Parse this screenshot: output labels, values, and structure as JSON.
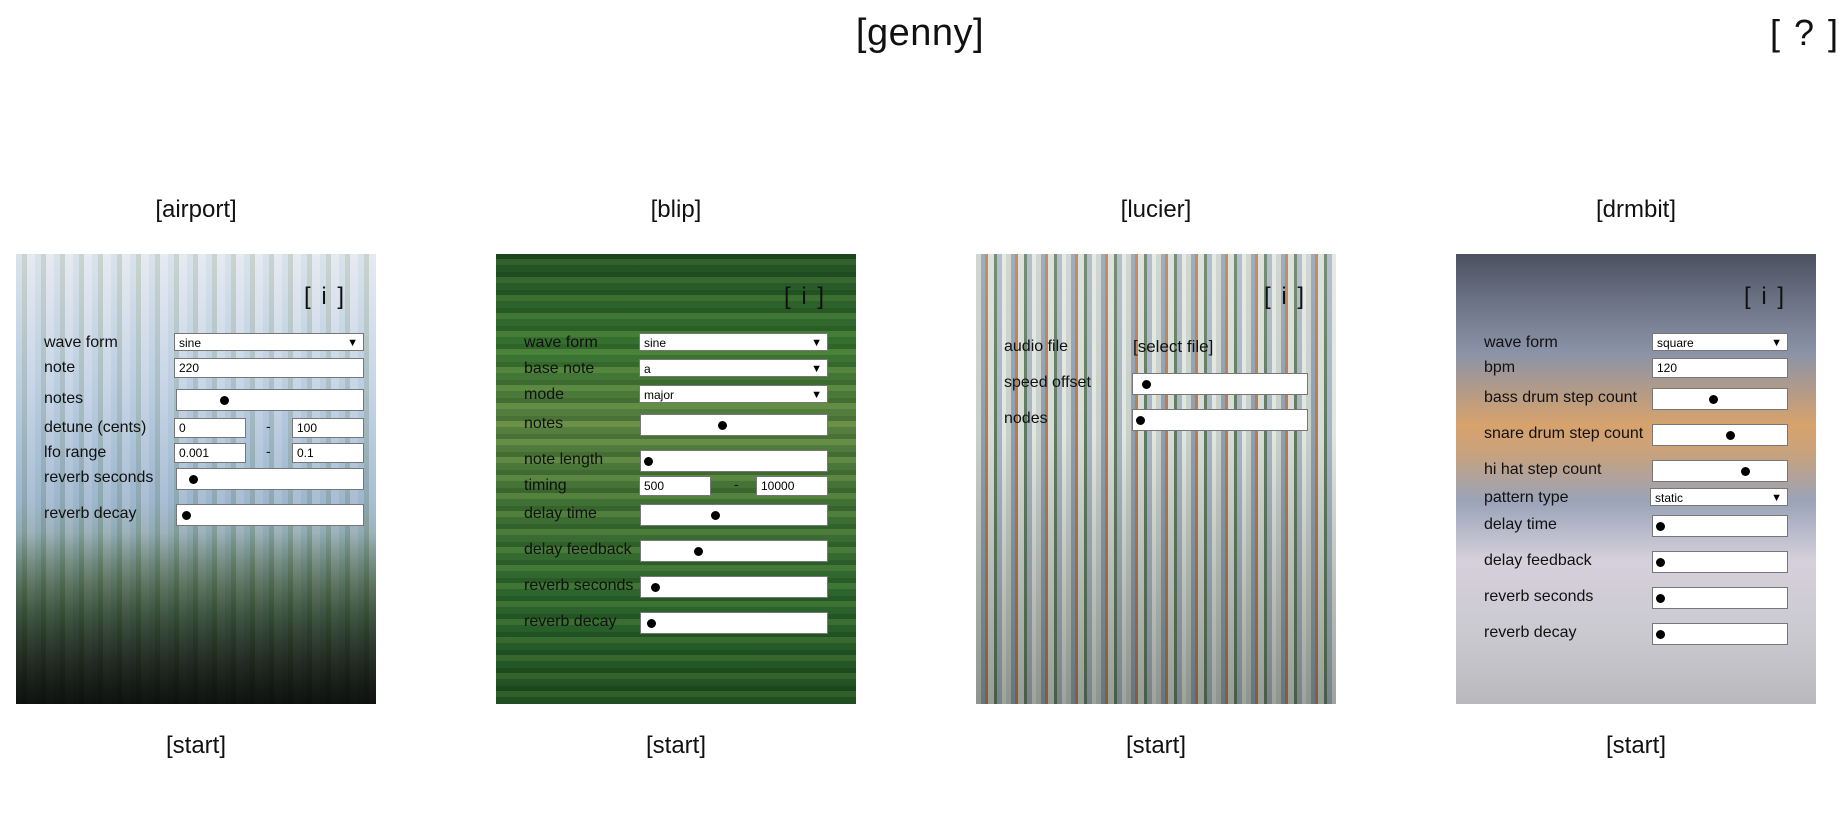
{
  "header": {
    "title": "[genny]",
    "help_label": "[ ? ]"
  },
  "common": {
    "info_label": "[ i ]",
    "start_label": "[start]",
    "range_separator": "-"
  },
  "synths": {
    "airport": {
      "title": "[airport]",
      "controls": {
        "wave_form": {
          "label": "wave form",
          "value": "sine"
        },
        "note": {
          "label": "note",
          "value": "220"
        },
        "notes": {
          "label": "notes",
          "level": 0.23
        },
        "detune": {
          "label": "detune (cents)",
          "min": "0",
          "max": "100"
        },
        "lfo_range": {
          "label": "lfo range",
          "min": "0.001",
          "max": "0.1"
        },
        "reverb_seconds": {
          "label": "reverb seconds",
          "level": 0.05
        },
        "reverb_decay": {
          "label": "reverb decay",
          "level": 0.01
        }
      }
    },
    "blip": {
      "title": "[blip]",
      "controls": {
        "wave_form": {
          "label": "wave form",
          "value": "sine"
        },
        "base_note": {
          "label": "base note",
          "value": "a"
        },
        "mode": {
          "label": "mode",
          "value": "major"
        },
        "notes": {
          "label": "notes",
          "level": 0.43
        },
        "note_length": {
          "label": "note length",
          "level": 0.0
        },
        "timing": {
          "label": "timing",
          "min": "500",
          "max": "10000"
        },
        "delay_time": {
          "label": "delay time",
          "level": 0.39
        },
        "delay_feedback": {
          "label": "delay feedback",
          "level": 0.29
        },
        "reverb_seconds": {
          "label": "reverb seconds",
          "level": 0.04
        },
        "reverb_decay": {
          "label": "reverb decay",
          "level": 0.02
        }
      }
    },
    "lucier": {
      "title": "[lucier]",
      "controls": {
        "audio_file": {
          "label": "audio file",
          "button": "[select file]"
        },
        "speed_offset": {
          "label": "speed offset",
          "level": 0.04
        },
        "nodes": {
          "label": "nodes",
          "level": 0.0
        }
      }
    },
    "drmbit": {
      "title": "[drmbit]",
      "controls": {
        "wave_form": {
          "label": "wave form",
          "value": "square"
        },
        "bpm": {
          "label": "bpm",
          "value": "120"
        },
        "bass_drum": {
          "label": "bass drum step count",
          "level": 0.44
        },
        "snare_drum": {
          "label": "snare drum step count",
          "level": 0.58
        },
        "hi_hat": {
          "label": "hi hat step count",
          "level": 0.71
        },
        "pattern_type": {
          "label": "pattern type",
          "value": "static"
        },
        "delay_time": {
          "label": "delay time",
          "level": 0.0
        },
        "delay_feedback": {
          "label": "delay feedback",
          "level": 0.0
        },
        "reverb_seconds": {
          "label": "reverb seconds",
          "level": 0.0
        },
        "reverb_decay": {
          "label": "reverb decay",
          "level": 0.0
        }
      }
    }
  }
}
